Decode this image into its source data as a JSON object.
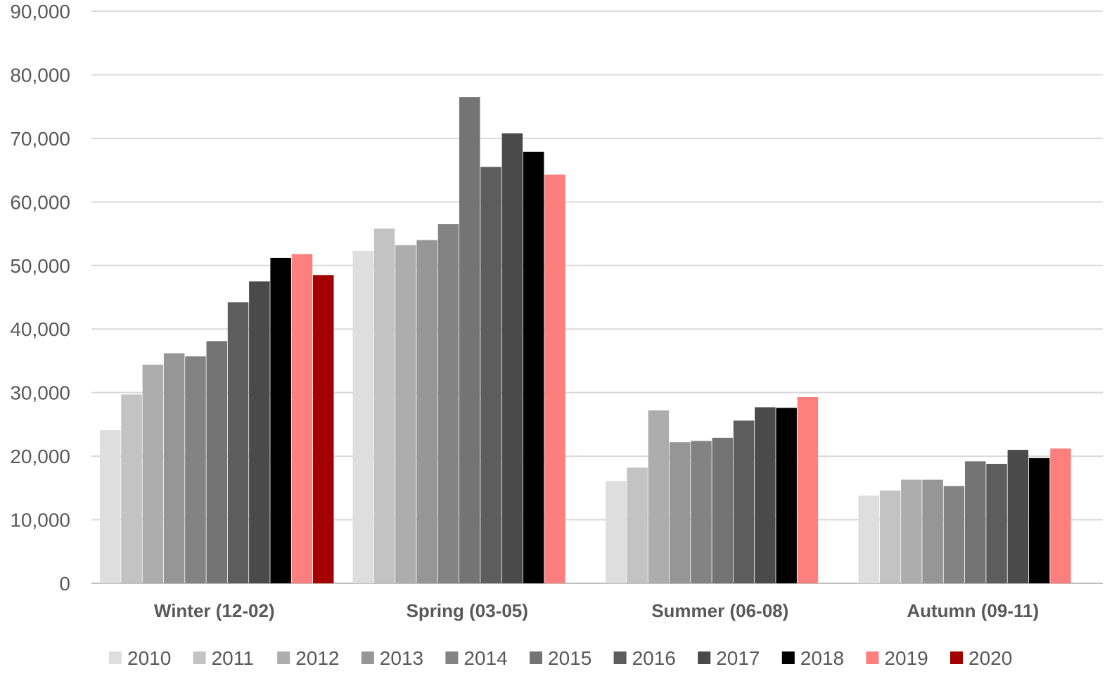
{
  "chart_data": {
    "type": "bar",
    "title": "",
    "xlabel": "",
    "ylabel": "",
    "ylim": [
      0,
      90000
    ],
    "yticks": [
      "0",
      "10,000",
      "20,000",
      "30,000",
      "40,000",
      "50,000",
      "60,000",
      "70,000",
      "80,000",
      "90,000"
    ],
    "grid": true,
    "legend_position": "bottom",
    "categories": [
      "Winter (12-02)",
      "Spring (03-05)",
      "Summer (06-08)",
      "Autumn (09-11)"
    ],
    "series": [
      {
        "name": "2010",
        "color": "#dedede",
        "values": [
          24100,
          52300,
          16100,
          13800
        ]
      },
      {
        "name": "2011",
        "color": "#c3c3c3",
        "values": [
          29700,
          55800,
          18200,
          14600
        ]
      },
      {
        "name": "2012",
        "color": "#adadad",
        "values": [
          34400,
          53200,
          27200,
          16300
        ]
      },
      {
        "name": "2013",
        "color": "#969696",
        "values": [
          36200,
          54000,
          22200,
          16300
        ]
      },
      {
        "name": "2014",
        "color": "#838383",
        "values": [
          35700,
          56500,
          22400,
          15300
        ]
      },
      {
        "name": "2015",
        "color": "#747474",
        "values": [
          38100,
          76500,
          22900,
          19200
        ]
      },
      {
        "name": "2016",
        "color": "#5d5d5d",
        "values": [
          44200,
          65500,
          25600,
          18800
        ]
      },
      {
        "name": "2017",
        "color": "#4a4a4a",
        "values": [
          47500,
          70800,
          27700,
          21000
        ]
      },
      {
        "name": "2018",
        "color": "#000000",
        "values": [
          51200,
          67900,
          27600,
          19700
        ]
      },
      {
        "name": "2019",
        "color": "#ff7f7f",
        "values": [
          51800,
          64300,
          29300,
          21200
        ]
      },
      {
        "name": "2020",
        "color": "#a50000",
        "values": [
          48500,
          null,
          null,
          null
        ]
      }
    ]
  }
}
